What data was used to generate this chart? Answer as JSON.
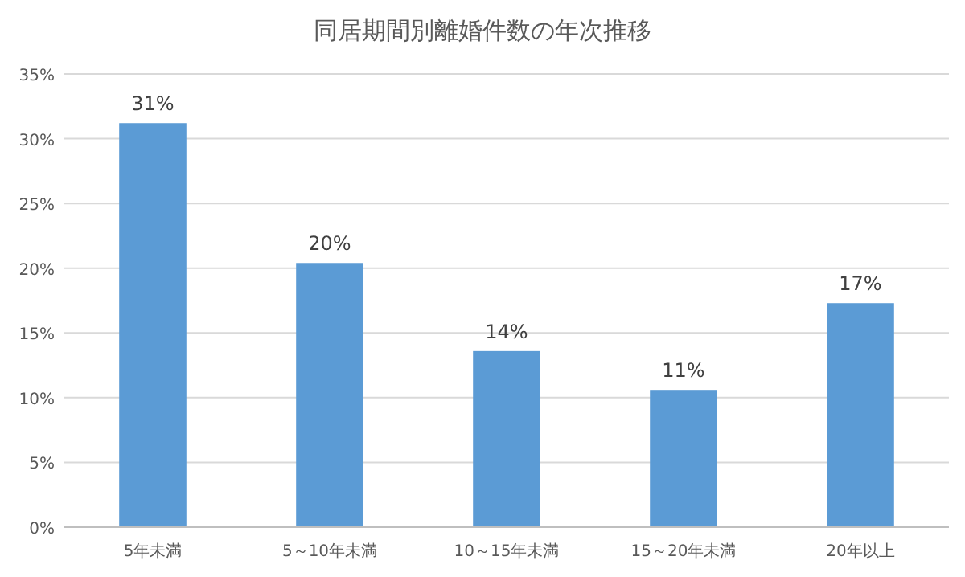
{
  "chart_data": {
    "type": "bar",
    "title": "同居期間別離婚件数の年次推移",
    "categories": [
      "5年未満",
      "5～10年未満",
      "10～15年未満",
      "15～20年未満",
      "20年以上"
    ],
    "values": [
      31.2,
      20.4,
      13.6,
      10.6,
      17.3
    ],
    "value_labels": [
      "31%",
      "20%",
      "14%",
      "11%",
      "17%"
    ],
    "color": "#5b9bd5",
    "ylim": [
      0,
      35
    ],
    "yticks": [
      {
        "value": 0,
        "label": "0%"
      },
      {
        "value": 5,
        "label": "5%"
      },
      {
        "value": 10,
        "label": "10%"
      },
      {
        "value": 15,
        "label": "15%"
      },
      {
        "value": 20,
        "label": "20%"
      },
      {
        "value": 25,
        "label": "25%"
      },
      {
        "value": 30,
        "label": "30%"
      },
      {
        "value": 35,
        "label": "35%"
      }
    ],
    "grid": "y"
  }
}
